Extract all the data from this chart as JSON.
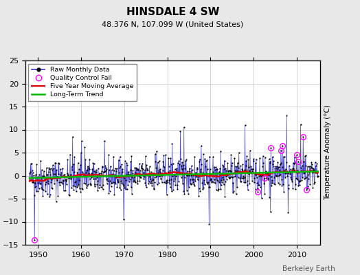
{
  "title": "HINSDALE 4 SW",
  "subtitle": "48.376 N, 107.099 W (United States)",
  "ylabel": "Temperature Anomaly (°C)",
  "watermark": "Berkeley Earth",
  "xlim": [
    1947.0,
    2015.5
  ],
  "ylim": [
    -15,
    25
  ],
  "yticks": [
    -15,
    -10,
    -5,
    0,
    5,
    10,
    15,
    20,
    25
  ],
  "xticks": [
    1950,
    1960,
    1970,
    1980,
    1990,
    2000,
    2010
  ],
  "bg_color": "#e8e8e8",
  "plot_bg_color": "#ffffff",
  "raw_line_color": "#3333cc",
  "raw_marker_color": "#000000",
  "ma_color": "#dd0000",
  "trend_color": "#00bb00",
  "qc_fail_color": "#ff00ff",
  "seed": 42,
  "years_start": 1948,
  "years_end": 2014
}
